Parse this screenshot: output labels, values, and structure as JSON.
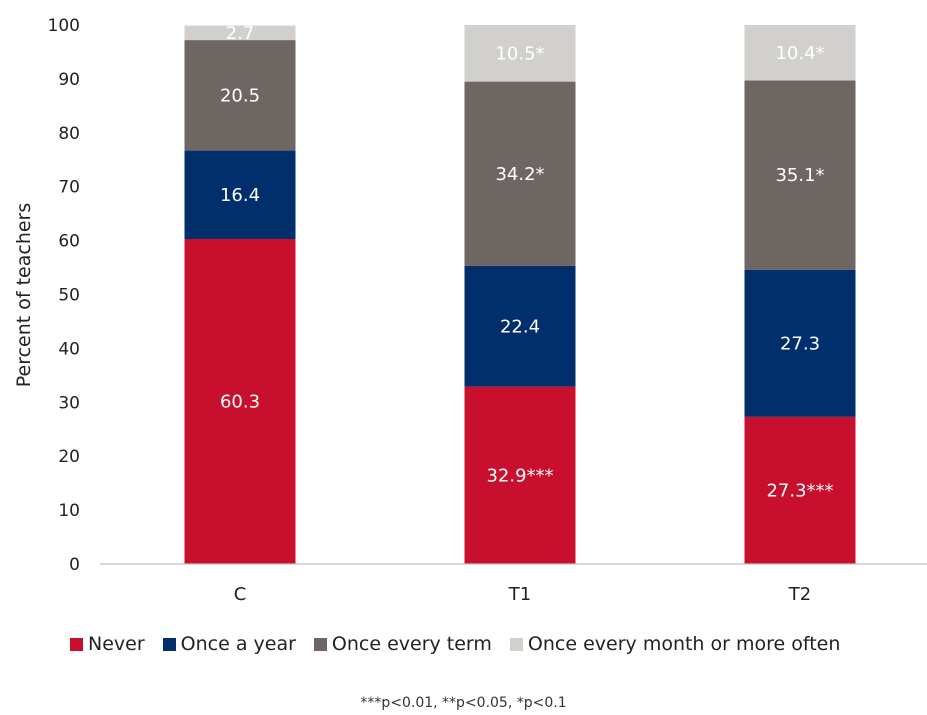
{
  "chart_data": {
    "type": "bar",
    "stacked": true,
    "ylabel": "Percent of teachers",
    "ylim": [
      0,
      100
    ],
    "yticks": [
      0,
      10,
      20,
      30,
      40,
      50,
      60,
      70,
      80,
      90,
      100
    ],
    "categories": [
      "C",
      "T1",
      "T2"
    ],
    "series": [
      {
        "name": "Never",
        "color": "#c8102e",
        "label_color": "#ffffff",
        "values": [
          60.3,
          32.9,
          27.3
        ],
        "labels": [
          "60.3",
          "32.9***",
          "27.3***"
        ]
      },
      {
        "name": "Once a year",
        "color": "#002f6c",
        "label_color": "#ffffff",
        "values": [
          16.4,
          22.4,
          27.3
        ],
        "labels": [
          "16.4",
          "22.4",
          "27.3"
        ]
      },
      {
        "name": "Once every term",
        "color": "#6e6662",
        "label_color": "#ffffff",
        "values": [
          20.5,
          34.2,
          35.1
        ],
        "labels": [
          "20.5",
          "34.2*",
          "35.1*"
        ]
      },
      {
        "name": "Once every month or more often",
        "color": "#d2d0cc",
        "label_color": "#ffffff",
        "values": [
          2.7,
          10.5,
          10.4
        ],
        "labels": [
          "2.7",
          "10.5*",
          "10.4*"
        ]
      }
    ],
    "legend_position": "bottom",
    "grid": false
  },
  "footnote": "***p<0.01, **p<0.05, *p<0.1"
}
